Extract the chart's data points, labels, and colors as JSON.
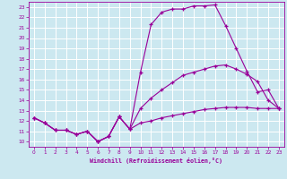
{
  "xlabel": "Windchill (Refroidissement éolien,°C)",
  "bg_color": "#cce8f0",
  "line_color": "#990099",
  "grid_color": "#ffffff",
  "xlim": [
    -0.5,
    23.5
  ],
  "ylim": [
    9.5,
    23.5
  ],
  "xticks": [
    0,
    1,
    2,
    3,
    4,
    5,
    6,
    7,
    8,
    9,
    10,
    11,
    12,
    13,
    14,
    15,
    16,
    17,
    18,
    19,
    20,
    21,
    22,
    23
  ],
  "yticks": [
    10,
    11,
    12,
    13,
    14,
    15,
    16,
    17,
    18,
    19,
    20,
    21,
    22,
    23
  ],
  "curve1_x": [
    0,
    1,
    2,
    3,
    4,
    5,
    6,
    7,
    8,
    9,
    10,
    11,
    12,
    13,
    14,
    15,
    16,
    17,
    18,
    19,
    20,
    21,
    22,
    23
  ],
  "curve1_y": [
    12.3,
    11.8,
    11.1,
    11.1,
    10.7,
    11.0,
    10.0,
    10.5,
    12.4,
    11.2,
    16.7,
    21.3,
    22.5,
    22.8,
    22.8,
    23.1,
    23.1,
    23.2,
    21.2,
    19.0,
    16.8,
    14.8,
    15.0,
    13.2
  ],
  "curve2_x": [
    0,
    1,
    2,
    3,
    4,
    5,
    6,
    7,
    8,
    9,
    10,
    11,
    12,
    13,
    14,
    15,
    16,
    17,
    18,
    19,
    20,
    21,
    22,
    23
  ],
  "curve2_y": [
    12.3,
    11.8,
    11.1,
    11.1,
    10.7,
    11.0,
    10.0,
    10.5,
    12.4,
    11.2,
    13.2,
    14.2,
    15.0,
    15.7,
    16.4,
    16.7,
    17.0,
    17.3,
    17.4,
    17.0,
    16.5,
    15.8,
    14.0,
    13.2
  ],
  "curve3_x": [
    0,
    1,
    2,
    3,
    4,
    5,
    6,
    7,
    8,
    9,
    10,
    11,
    12,
    13,
    14,
    15,
    16,
    17,
    18,
    19,
    20,
    21,
    22,
    23
  ],
  "curve3_y": [
    12.3,
    11.8,
    11.1,
    11.1,
    10.7,
    11.0,
    10.0,
    10.5,
    12.4,
    11.2,
    11.8,
    12.0,
    12.3,
    12.5,
    12.7,
    12.9,
    13.1,
    13.2,
    13.3,
    13.3,
    13.3,
    13.2,
    13.2,
    13.2
  ]
}
